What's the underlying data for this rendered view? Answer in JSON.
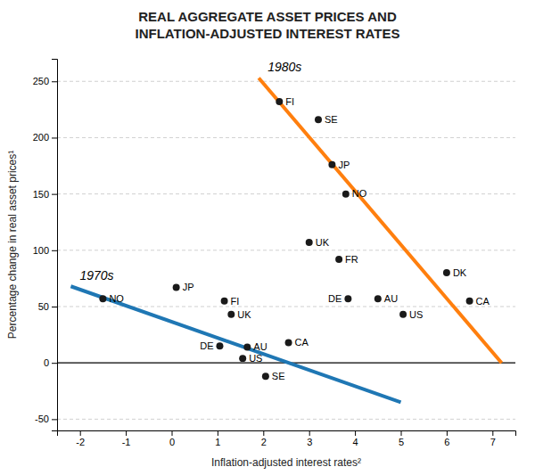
{
  "chart_data": {
    "type": "scatter",
    "title": "REAL AGGREGATE ASSET PRICES AND\nINFLATION-ADJUSTED INTEREST RATES",
    "x_label": "Inflation-adjusted interest rates²",
    "y_label": "Percentage change in real asset prices¹",
    "xlim": [
      -2.5,
      7.5
    ],
    "ylim": [
      -60,
      270
    ],
    "xticks": [
      -2,
      -1,
      0,
      1,
      2,
      3,
      4,
      5,
      6,
      7
    ],
    "yticks": [
      -50,
      0,
      50,
      100,
      150,
      200,
      250
    ],
    "grid": true,
    "color": "#1a1a1a",
    "marker": "circle",
    "series": [
      {
        "name": "1970s",
        "labels": [
          "NO",
          "JP",
          "FI",
          "UK",
          "DE",
          "US",
          "AU",
          "CA",
          "SE"
        ],
        "x": [
          -1.5,
          0.1,
          1.15,
          1.3,
          1.05,
          1.55,
          1.65,
          2.55,
          2.05
        ],
        "values": [
          57,
          67,
          55,
          43,
          15,
          4,
          14,
          18,
          -12
        ],
        "trend": {
          "x": [
            -2.2,
            5.0
          ],
          "values": [
            68,
            -35
          ]
        }
      },
      {
        "name": "1980s",
        "labels": [
          "FI",
          "SE",
          "JP",
          "NO",
          "UK",
          "FR",
          "DE",
          "AU",
          "US",
          "DK",
          "CA"
        ],
        "x": [
          2.35,
          3.2,
          3.5,
          3.8,
          3.0,
          3.65,
          3.85,
          4.5,
          5.05,
          6.0,
          6.5
        ],
        "values": [
          232,
          216,
          176,
          150,
          107,
          92,
          57,
          57,
          43,
          80,
          55
        ],
        "trend": {
          "x": [
            1.9,
            7.2
          ],
          "values": [
            253,
            0
          ]
        }
      }
    ]
  }
}
